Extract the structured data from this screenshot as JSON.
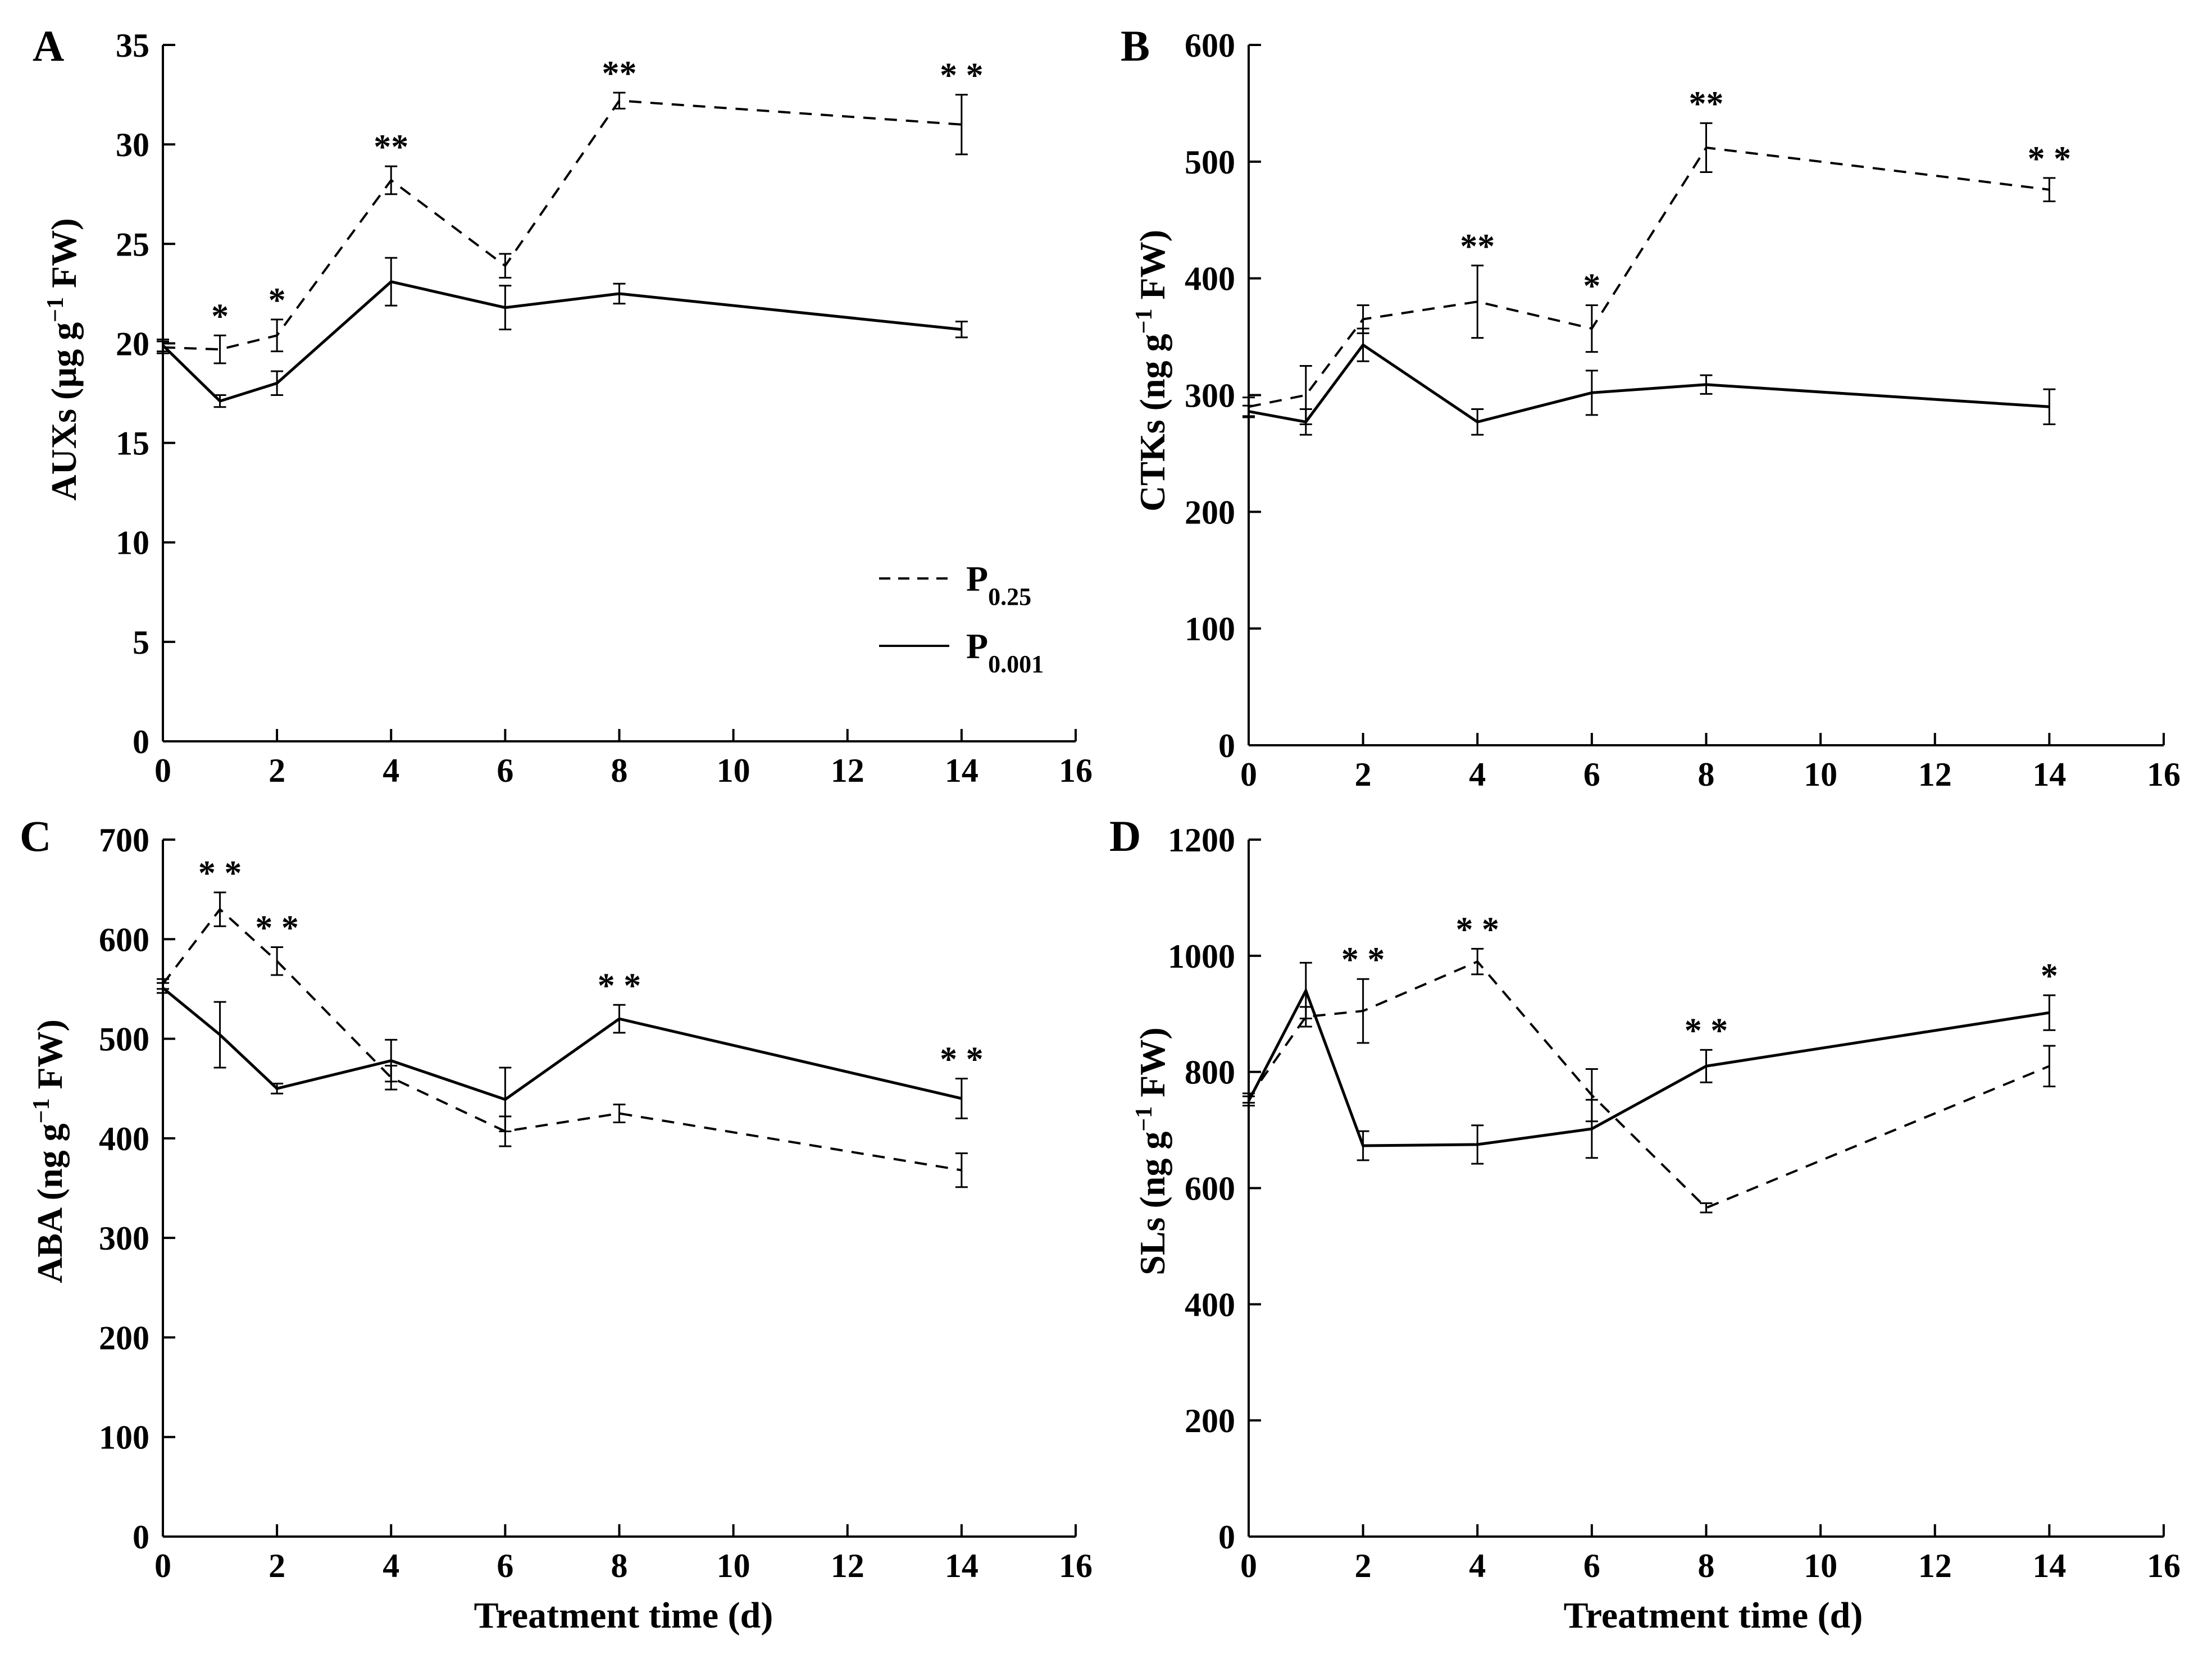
{
  "figure": {
    "xlabel": "Treatment time (d)",
    "legend": {
      "entries": [
        {
          "base": "P",
          "sub": "0.25",
          "style": "dashed"
        },
        {
          "base": "P",
          "sub": "0.001",
          "style": "solid"
        }
      ],
      "placement": "bottom-right of panel A"
    }
  },
  "chart_data": [
    {
      "panel": "A",
      "type": "line",
      "ylabel": {
        "pre": "AUXs (µg g",
        "sup": "−1",
        "post": " FW)"
      },
      "xlabel": "",
      "xlim": [
        0,
        16
      ],
      "ylim": [
        0,
        35
      ],
      "xticks": [
        0,
        2,
        4,
        6,
        8,
        10,
        12,
        14,
        16
      ],
      "yticks": [
        0,
        5,
        10,
        15,
        20,
        25,
        30,
        35
      ],
      "x": [
        0,
        1,
        2,
        4,
        6,
        8,
        14
      ],
      "series": [
        {
          "name": "P0.25",
          "style": "dashed",
          "values": [
            19.8,
            19.7,
            20.4,
            28.2,
            23.9,
            32.2,
            31.0
          ],
          "errors": [
            0.3,
            0.7,
            0.8,
            0.7,
            0.6,
            0.4,
            1.5
          ]
        },
        {
          "name": "P0.001",
          "style": "solid",
          "values": [
            19.9,
            17.1,
            18.0,
            23.1,
            21.8,
            22.5,
            20.7
          ],
          "errors": [
            0.3,
            0.3,
            0.6,
            1.2,
            1.1,
            0.5,
            0.4
          ]
        }
      ],
      "annotations": [
        {
          "x": 1,
          "y": 20.4,
          "label": "*"
        },
        {
          "x": 2,
          "y": 21.2,
          "label": "*"
        },
        {
          "x": 4,
          "y": 28.9,
          "label": "**"
        },
        {
          "x": 8,
          "y": 32.6,
          "label": "**"
        },
        {
          "x": 14,
          "y": 32.5,
          "label": "* *"
        }
      ]
    },
    {
      "panel": "B",
      "type": "line",
      "ylabel": {
        "pre": "CTKs (ng g",
        "sup": "−1",
        "post": " FW)"
      },
      "xlabel": "",
      "xlim": [
        0,
        16
      ],
      "ylim": [
        0,
        600
      ],
      "xticks": [
        0,
        2,
        4,
        6,
        8,
        10,
        12,
        14,
        16
      ],
      "yticks": [
        0,
        100,
        200,
        300,
        400,
        500,
        600
      ],
      "x": [
        0,
        1,
        2,
        4,
        6,
        8,
        14
      ],
      "series": [
        {
          "name": "P0.25",
          "style": "dashed",
          "values": [
            290,
            300,
            365,
            380,
            357,
            512,
            476
          ],
          "errors": [
            8,
            25,
            12,
            31,
            20,
            21,
            10
          ]
        },
        {
          "name": "P0.001",
          "style": "solid",
          "values": [
            286,
            277,
            343,
            277,
            302,
            309,
            290
          ],
          "errors": [
            5,
            11,
            14,
            11,
            19,
            8,
            15
          ]
        }
      ],
      "annotations": [
        {
          "x": 4,
          "y": 411,
          "label": "**"
        },
        {
          "x": 6,
          "y": 377,
          "label": "*"
        },
        {
          "x": 8,
          "y": 533,
          "label": "**"
        },
        {
          "x": 14,
          "y": 486,
          "label": "* *"
        }
      ]
    },
    {
      "panel": "C",
      "type": "line",
      "ylabel": {
        "pre": "ABA (ng g",
        "sup": "−1",
        "post": " FW)"
      },
      "xlabel": "Treatment time (d)",
      "xlim": [
        0,
        16
      ],
      "ylim": [
        0,
        700
      ],
      "xticks": [
        0,
        2,
        4,
        6,
        8,
        10,
        12,
        14,
        16
      ],
      "yticks": [
        0,
        100,
        200,
        300,
        400,
        500,
        600,
        700
      ],
      "x": [
        0,
        1,
        2,
        4,
        6,
        8,
        14
      ],
      "series": [
        {
          "name": "P0.25",
          "style": "dashed",
          "values": [
            555,
            630,
            578,
            461,
            407,
            425,
            368
          ],
          "errors": [
            5,
            17,
            14,
            12,
            15,
            9,
            17
          ]
        },
        {
          "name": "P0.001",
          "style": "solid",
          "values": [
            551,
            504,
            450,
            478,
            439,
            520,
            440
          ],
          "errors": [
            5,
            33,
            5,
            21,
            32,
            14,
            20
          ]
        }
      ],
      "annotations": [
        {
          "x": 1,
          "y": 647,
          "label": "* *"
        },
        {
          "x": 2,
          "y": 592,
          "label": "* *"
        },
        {
          "x": 8,
          "y": 534,
          "label": "* *"
        },
        {
          "x": 14,
          "y": 460,
          "label": "* *"
        }
      ]
    },
    {
      "panel": "D",
      "type": "line",
      "ylabel": {
        "pre": "SLs (ng g",
        "sup": "−1",
        "post": " FW)"
      },
      "xlabel": "Treatment time (d)",
      "xlim": [
        0,
        16
      ],
      "ylim": [
        0,
        1200
      ],
      "xticks": [
        0,
        2,
        4,
        6,
        8,
        10,
        12,
        14,
        16
      ],
      "yticks": [
        0,
        200,
        400,
        600,
        800,
        1000,
        1200
      ],
      "x": [
        0,
        1,
        2,
        4,
        6,
        8,
        14
      ],
      "series": [
        {
          "name": "P0.25",
          "style": "dashed",
          "values": [
            755,
            895,
            905,
            990,
            760,
            566,
            810
          ],
          "errors": [
            8,
            17,
            55,
            22,
            45,
            8,
            35
          ]
        },
        {
          "name": "P0.001",
          "style": "solid",
          "values": [
            750,
            940,
            673,
            675,
            702,
            810,
            902
          ],
          "errors": [
            8,
            48,
            25,
            33,
            50,
            28,
            30
          ]
        }
      ],
      "annotations": [
        {
          "x": 2,
          "y": 960,
          "label": "* *"
        },
        {
          "x": 4,
          "y": 1012,
          "label": "* *"
        },
        {
          "x": 8,
          "y": 838,
          "label": "* *"
        },
        {
          "x": 14,
          "y": 932,
          "label": "*"
        }
      ]
    }
  ]
}
